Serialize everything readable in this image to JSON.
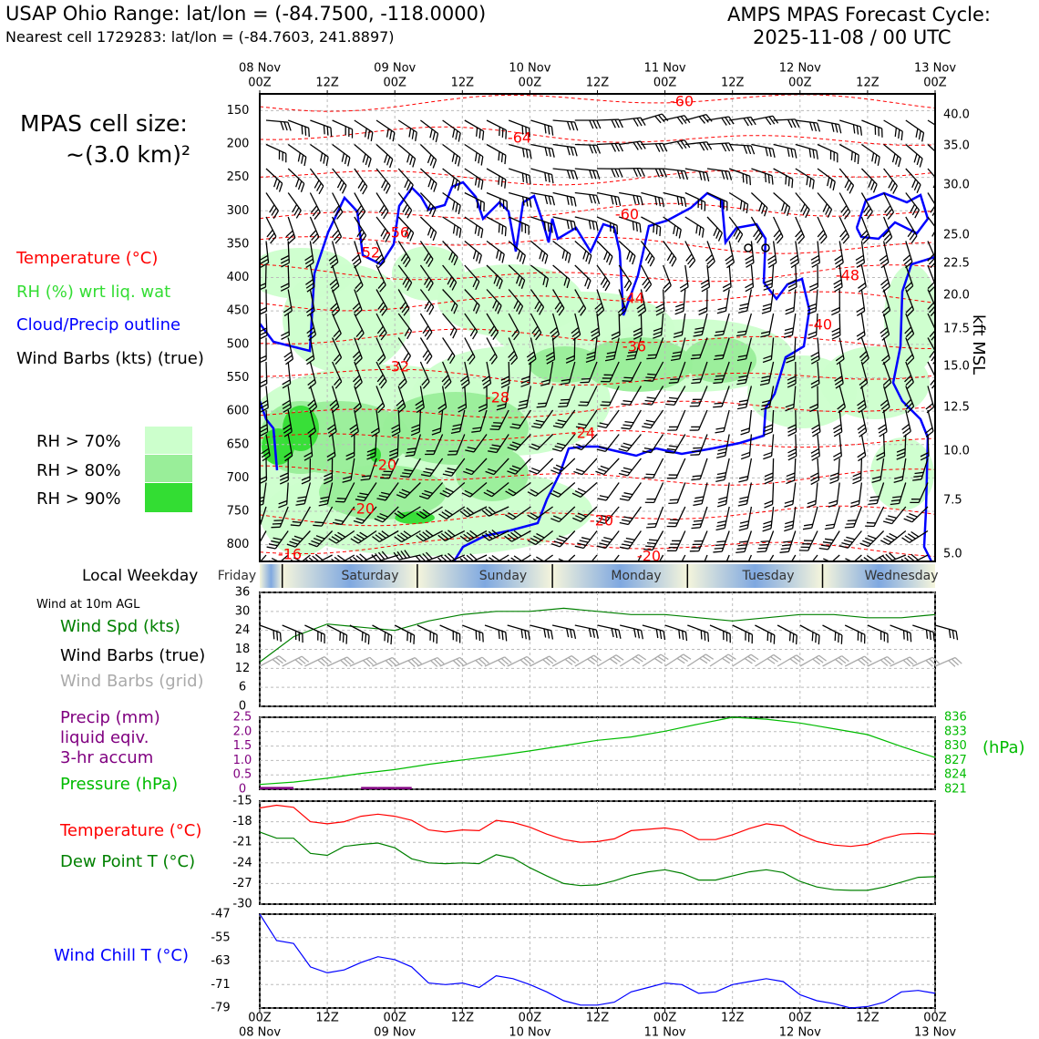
{
  "header": {
    "title_left": "USAP Ohio Range: lat/lon = (-84.7500, -118.0000)",
    "subtitle_left": "Nearest cell 1729283: lat/lon = (-84.7603, 241.8897)",
    "title_right_line1": "AMPS MPAS Forecast Cycle:",
    "title_right_line2": "2025-11-08 / 00 UTC"
  },
  "left_legend": {
    "cell_size_line1": "MPAS cell size:",
    "cell_size_line2": "~(3.0 km)²",
    "temperature": "Temperature (°C)",
    "rh": "RH (%) wrt liq. wat",
    "cloud": "Cloud/Precip outline",
    "barbs": "Wind Barbs (kts) (true)",
    "rh70": "RH > 70%",
    "rh80": "RH > 80%",
    "rh90": "RH > 90%"
  },
  "colors": {
    "temperature": "#ff0000",
    "rh_label": "#33dd33",
    "cloud": "#0000ff",
    "rh70": "#ccffcc",
    "rh80": "#99ee99",
    "rh90": "#33dd33",
    "wind_speed": "#008000",
    "precip": "#800080",
    "pressure": "#00bb00",
    "dewpoint": "#008000",
    "windchill": "#0000ff",
    "grid_barbs": "#aaaaaa",
    "weekday_band": "#7fa8e0"
  },
  "time_axis": {
    "ticks": [
      "00Z",
      "12Z",
      "00Z",
      "12Z",
      "00Z",
      "12Z",
      "00Z",
      "12Z",
      "00Z",
      "12Z",
      "00Z"
    ],
    "dates": [
      "08 Nov",
      "09 Nov",
      "10 Nov",
      "11 Nov",
      "12 Nov",
      "13 Nov"
    ]
  },
  "weekday": {
    "label": "Local Weekday",
    "days": [
      "Friday",
      "Saturday",
      "Sunday",
      "Monday",
      "Tuesday",
      "Wednesday"
    ]
  },
  "right_axis_label": "kft MSL",
  "surface_legend": {
    "wind_title": "Wind at 10m AGL",
    "wind_spd": "Wind Spd (kts)",
    "barbs_true": "Wind Barbs (true)",
    "barbs_grid": "Wind Barbs (grid)",
    "precip_line1": "Precip (mm)",
    "precip_line2": "liquid eqiv.",
    "precip_line3": "3-hr accum",
    "pressure": "Pressure (hPa)",
    "pressure_unit": "(hPa)",
    "temperature": "Temperature (°C)",
    "dewpoint": "Dew Point T (°C)",
    "windchill": "Wind Chill T (°C)"
  },
  "chart_data": [
    {
      "type": "heatmap",
      "panel": "cross-section",
      "y_left_ticks_hPa": [
        "150",
        "200",
        "250",
        "300",
        "350",
        "400",
        "450",
        "500",
        "550",
        "600",
        "650",
        "700",
        "750",
        "800"
      ],
      "y_right_ticks_kft": [
        "40.0",
        "35.0",
        "30.0",
        "25.0",
        "22.5",
        "20.0",
        "17.5",
        "15.0",
        "12.5",
        "10.0",
        "7.5",
        "5.0"
      ],
      "ylabel_right": "kft MSL",
      "isotherm_labels": [
        "-60",
        "-64",
        "-60",
        "-56",
        "-52",
        "-48",
        "-44",
        "-40",
        "-36",
        "-32",
        "-28",
        "-24",
        "-20",
        "-20",
        "-20",
        "-20",
        "-16"
      ]
    },
    {
      "type": "line",
      "panel": "wind",
      "ylim": [
        0,
        36
      ],
      "yticks": [
        "36",
        "30",
        "24",
        "18",
        "12",
        "6",
        "0"
      ],
      "series": [
        {
          "name": "Wind Spd (kts)",
          "x_hours": [
            0,
            6,
            12,
            18,
            24,
            30,
            36,
            42,
            48,
            54,
            60,
            66,
            72,
            78,
            84,
            90,
            96,
            102,
            108,
            114,
            120
          ],
          "values": [
            14,
            22,
            26,
            25,
            24,
            27,
            29,
            30,
            30,
            31,
            30,
            29,
            29,
            28,
            27,
            28,
            29,
            29,
            28,
            28,
            29
          ]
        }
      ]
    },
    {
      "type": "line",
      "panel": "precip-pressure",
      "y_left_ticks": [
        "2.5",
        "2.0",
        "1.5",
        "1.0",
        "0.5",
        "0"
      ],
      "y_right_ticks": [
        "836",
        "833",
        "830",
        "827",
        "824",
        "821"
      ],
      "series": [
        {
          "name": "Pressure (hPa)",
          "x_hours": [
            0,
            6,
            12,
            18,
            24,
            30,
            36,
            42,
            48,
            54,
            60,
            66,
            72,
            78,
            84,
            90,
            96,
            102,
            108,
            114,
            120
          ],
          "values": [
            822.0,
            822.5,
            823.3,
            824.3,
            825.1,
            826.2,
            827.1,
            828.0,
            829.0,
            830.1,
            831.2,
            831.9,
            833.1,
            834.6,
            836.0,
            835.6,
            834.8,
            833.6,
            832.4,
            829.9,
            827.6
          ]
        },
        {
          "name": "Precip (mm)",
          "x_hours": [
            0,
            3,
            6,
            9,
            12,
            15,
            18,
            21,
            24
          ],
          "values": [
            0.05,
            0.05,
            0,
            0,
            0,
            0,
            0.05,
            0.05,
            0.05
          ]
        }
      ]
    },
    {
      "type": "line",
      "panel": "temperature",
      "ylim": [
        -30,
        -15
      ],
      "yticks": [
        "-15",
        "-18",
        "-21",
        "-24",
        "-27",
        "-30"
      ],
      "series": [
        {
          "name": "Temperature (°C)",
          "x_hours": [
            0,
            3,
            6,
            9,
            12,
            15,
            18,
            21,
            24,
            27,
            30,
            33,
            36,
            39,
            42,
            45,
            48,
            51,
            54,
            57,
            60,
            63,
            66,
            69,
            72,
            75,
            78,
            81,
            84,
            87,
            90,
            93,
            96,
            99,
            102,
            105,
            108,
            111,
            114,
            117,
            120
          ],
          "values": [
            -16.0,
            -15.6,
            -15.9,
            -18.0,
            -18.3,
            -18.0,
            -17.2,
            -16.9,
            -17.2,
            -17.8,
            -19.2,
            -19.5,
            -19.2,
            -19.3,
            -17.8,
            -18.1,
            -18.8,
            -19.8,
            -20.6,
            -21.0,
            -20.9,
            -20.5,
            -19.3,
            -19.1,
            -18.9,
            -19.3,
            -20.6,
            -20.6,
            -19.9,
            -19.0,
            -18.3,
            -18.6,
            -19.9,
            -20.9,
            -21.4,
            -21.6,
            -21.3,
            -20.4,
            -19.8,
            -19.7,
            -19.8
          ]
        },
        {
          "name": "Dew Point T (°C)",
          "x_hours": [
            0,
            3,
            6,
            9,
            12,
            15,
            18,
            21,
            24,
            27,
            30,
            33,
            36,
            39,
            42,
            45,
            48,
            51,
            54,
            57,
            60,
            63,
            66,
            69,
            72,
            75,
            78,
            81,
            84,
            87,
            90,
            93,
            96,
            99,
            102,
            105,
            108,
            111,
            114,
            117,
            120
          ],
          "values": [
            -19.5,
            -20.4,
            -20.4,
            -22.6,
            -22.9,
            -21.6,
            -21.3,
            -21.1,
            -21.8,
            -23.4,
            -24.0,
            -24.1,
            -24.0,
            -24.1,
            -22.8,
            -23.3,
            -24.7,
            -25.9,
            -27.0,
            -27.3,
            -27.2,
            -26.6,
            -25.8,
            -25.3,
            -25.0,
            -25.5,
            -26.5,
            -26.5,
            -25.9,
            -25.3,
            -25.0,
            -25.4,
            -26.7,
            -27.5,
            -27.9,
            -28.0,
            -28.0,
            -27.5,
            -26.8,
            -26.1,
            -26.0
          ]
        }
      ]
    },
    {
      "type": "line",
      "panel": "windchill",
      "ylim": [
        -79,
        -47
      ],
      "yticks": [
        "-47",
        "-55",
        "-63",
        "-71",
        "-79"
      ],
      "series": [
        {
          "name": "Wind Chill T (°C)",
          "x_hours": [
            0,
            3,
            6,
            9,
            12,
            15,
            18,
            21,
            24,
            27,
            30,
            33,
            36,
            39,
            42,
            45,
            48,
            51,
            54,
            57,
            60,
            63,
            66,
            69,
            72,
            75,
            78,
            81,
            84,
            87,
            90,
            93,
            96,
            99,
            102,
            105,
            108,
            111,
            114,
            117,
            120
          ],
          "values": [
            -47.0,
            -56.0,
            -57.0,
            -65.0,
            -67.0,
            -66.0,
            -63.5,
            -61.5,
            -62.5,
            -65.0,
            -70.5,
            -71.0,
            -70.5,
            -72.0,
            -68.0,
            -69.0,
            -71.0,
            -73.5,
            -76.5,
            -78.0,
            -78.0,
            -77.0,
            -73.5,
            -72.0,
            -70.5,
            -71.0,
            -74.0,
            -73.5,
            -71.0,
            -70.0,
            -69.0,
            -70.0,
            -74.5,
            -76.5,
            -77.5,
            -79.0,
            -78.5,
            -77.0,
            -73.5,
            -73.0,
            -74.0
          ]
        }
      ]
    }
  ]
}
